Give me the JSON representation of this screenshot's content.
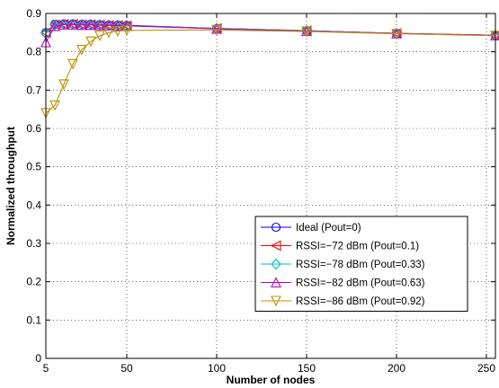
{
  "chart_data": {
    "type": "line",
    "title": "",
    "xlabel": "Number of nodes",
    "ylabel": "Normalized throughput",
    "xlim": [
      5,
      255
    ],
    "ylim": [
      0,
      0.9
    ],
    "xticks": [
      5,
      50,
      100,
      150,
      200,
      250
    ],
    "xtick_labels": [
      "5",
      "50",
      "100",
      "150",
      "200",
      "250"
    ],
    "yticks": [
      0,
      0.1,
      0.2,
      0.3,
      0.4,
      0.5,
      0.6,
      0.7,
      0.8,
      0.9
    ],
    "ytick_labels": [
      "0",
      "0.1",
      "0.2",
      "0.3",
      "0.4",
      "0.5",
      "0.6",
      "0.7",
      "0.8",
      "0.9"
    ],
    "grid": true,
    "legend_position": "bottom-right",
    "series": [
      {
        "name": "Ideal (Pout=0)",
        "color": "#0000ff",
        "marker": "circle",
        "x": [
          5,
          10,
          15,
          20,
          25,
          30,
          35,
          40,
          45,
          50,
          100,
          150,
          200,
          255
        ],
        "y": [
          0.85,
          0.872,
          0.873,
          0.873,
          0.872,
          0.872,
          0.871,
          0.87,
          0.87,
          0.869,
          0.861,
          0.855,
          0.848,
          0.843
        ]
      },
      {
        "name": "RSSI=−72 dBm (Pout=0.1)",
        "color": "#ff0000",
        "marker": "triangle-left",
        "x": [
          5,
          10,
          15,
          20,
          25,
          30,
          35,
          40,
          45,
          50,
          100,
          150,
          200,
          255
        ],
        "y": [
          0.85,
          0.871,
          0.872,
          0.872,
          0.871,
          0.871,
          0.87,
          0.869,
          0.869,
          0.868,
          0.861,
          0.855,
          0.848,
          0.843
        ]
      },
      {
        "name": "RSSI=−78 dBm (Pout=0.33)",
        "color": "#00bfbf",
        "marker": "diamond",
        "x": [
          5,
          10,
          15,
          20,
          25,
          30,
          35,
          40,
          45,
          50,
          100,
          150,
          200,
          255
        ],
        "y": [
          0.848,
          0.87,
          0.872,
          0.872,
          0.871,
          0.871,
          0.87,
          0.869,
          0.869,
          0.868,
          0.861,
          0.855,
          0.848,
          0.843
        ]
      },
      {
        "name": "RSSI=−82 dBm (Pout=0.63)",
        "color": "#bf00bf",
        "marker": "triangle-up",
        "x": [
          5,
          10,
          15,
          20,
          25,
          30,
          35,
          40,
          45,
          50,
          100,
          150,
          200,
          255
        ],
        "y": [
          0.825,
          0.867,
          0.871,
          0.871,
          0.87,
          0.87,
          0.869,
          0.869,
          0.868,
          0.868,
          0.86,
          0.854,
          0.848,
          0.843
        ]
      },
      {
        "name": "RSSI=−86 dBm (Pout=0.92)",
        "color": "#bf8f00",
        "marker": "triangle-down",
        "x": [
          5,
          10,
          15,
          20,
          25,
          30,
          35,
          40,
          45,
          50,
          100,
          150,
          200,
          255
        ],
        "y": [
          0.64,
          0.66,
          0.715,
          0.768,
          0.805,
          0.827,
          0.842,
          0.85,
          0.854,
          0.856,
          0.857,
          0.853,
          0.847,
          0.842
        ]
      }
    ]
  }
}
